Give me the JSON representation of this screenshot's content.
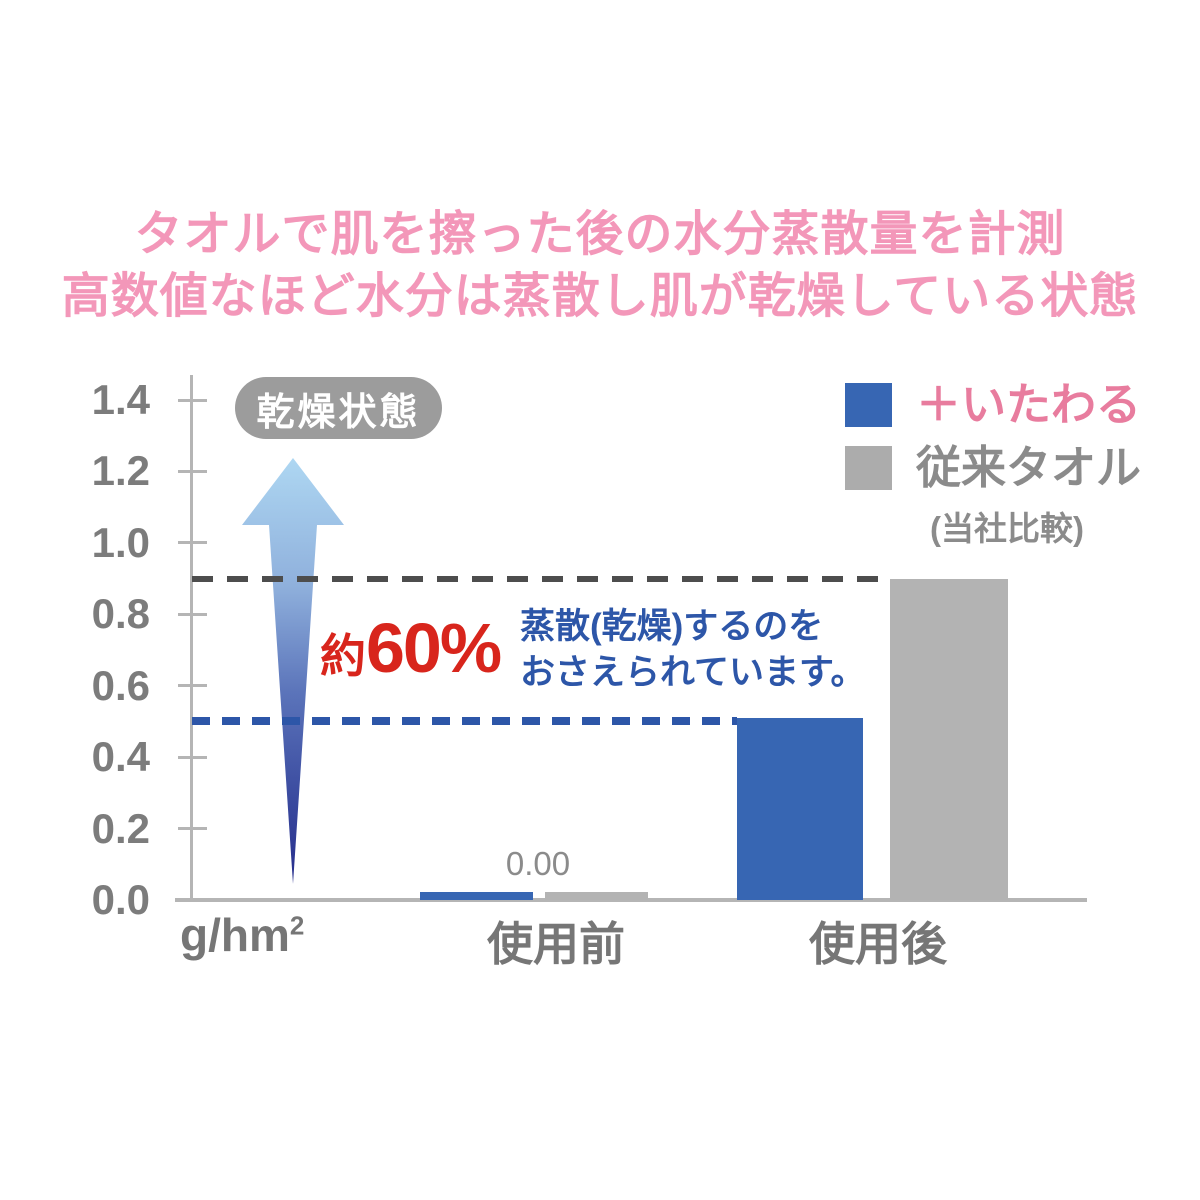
{
  "title": {
    "line1": "タオルで肌を擦った後の水分蒸散量を計測",
    "line2": "高数値なほど水分は蒸散し肌が乾燥している状態"
  },
  "badge": {
    "label": "乾燥状態"
  },
  "annotation": {
    "approx": "約",
    "percent": "60%",
    "desc_line1": "蒸散(乾燥)するのを",
    "desc_line2": "おさえられています。"
  },
  "legend": {
    "items": [
      {
        "label": "＋いたわる",
        "swatch_color": "#3766B3",
        "label_color": "#E87C9E"
      },
      {
        "label": "従来タオル",
        "note": "(当社比較)",
        "swatch_color": "#ACACAC",
        "label_color": "#8B8B8B"
      }
    ]
  },
  "unit": {
    "base": "g/hm",
    "sup": "2",
    "full": "g/hm²"
  },
  "colors": {
    "title_pink": "#F397B9",
    "legend_pink": "#E87C9E",
    "bar_blue": "#3766B3",
    "bar_gray": "#B3B3B3",
    "deep_blue_text": "#2D56A8",
    "red_percent": "#D8251C",
    "badge_gray": "#9C9C9C",
    "axis_gray": "#B5B5B5",
    "tick_label_gray": "#7C7C7C",
    "dash_gray": "#4D4D4D",
    "arrow_gradient_top": "#AED7F2",
    "arrow_gradient_bottom": "#272E8C"
  },
  "chart_data": {
    "type": "bar",
    "title": "タオルで肌を擦った後の水分蒸散量を計測　高数値なほど水分は蒸散し肌が乾燥している状態",
    "categories": [
      "使用前",
      "使用後"
    ],
    "series": [
      {
        "name": "＋いたわる",
        "color": "#3766B3",
        "values": [
          0.0,
          0.51
        ]
      },
      {
        "name": "従来タオル（当社比較）",
        "color": "#B3B3B3",
        "values": [
          0.0,
          0.9
        ]
      }
    ],
    "bar_value_label": "0.00",
    "ylabel": "g/hm²",
    "ylim": [
      0,
      1.4
    ],
    "yticks": [
      "0.0",
      "0.2",
      "0.4",
      "0.6",
      "0.8",
      "1.0",
      "1.2",
      "1.4"
    ],
    "grid": false,
    "legend_position": "top-right",
    "reference_lines": [
      {
        "value": 0.9,
        "color": "#4D4D4D",
        "style": "dashed",
        "series": "従来タオル"
      },
      {
        "value": 0.5,
        "color": "#2D56A8",
        "style": "dashed",
        "series": "＋いたわる"
      }
    ],
    "annotations": [
      "乾燥状態",
      "約60%",
      "蒸散(乾燥)するのを おさえられています。",
      "0.00"
    ]
  }
}
